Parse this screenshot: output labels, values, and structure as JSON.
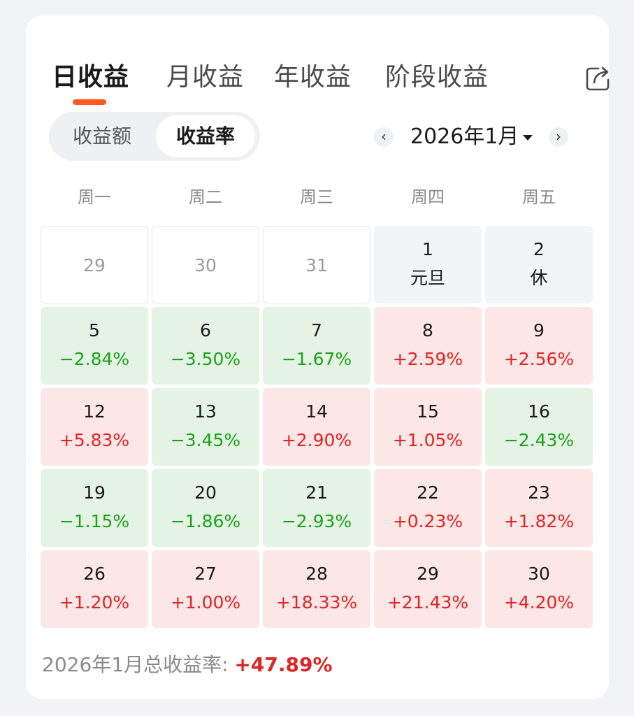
{
  "tabs": [
    {
      "label": "日收益",
      "active": true
    },
    {
      "label": "月收益",
      "active": false
    },
    {
      "label": "年收益",
      "active": false
    },
    {
      "label": "阶段收益",
      "active": false
    }
  ],
  "share_icon": "share-icon",
  "segment": {
    "options": [
      "收益额",
      "收益率"
    ],
    "selected": "收益率"
  },
  "month_nav": {
    "prev_icon": "‹",
    "next_icon": "›",
    "label": "2026年1月"
  },
  "weekdays": [
    "周一",
    "周二",
    "周三",
    "周四",
    "周五"
  ],
  "calendar": [
    [
      {
        "day": "29",
        "value": "",
        "state": "empty"
      },
      {
        "day": "30",
        "value": "",
        "state": "empty"
      },
      {
        "day": "31",
        "value": "",
        "state": "empty"
      },
      {
        "day": "1",
        "value": "元旦",
        "state": "holiday"
      },
      {
        "day": "2",
        "value": "休",
        "state": "holiday"
      }
    ],
    [
      {
        "day": "5",
        "value": "−2.84%",
        "state": "down"
      },
      {
        "day": "6",
        "value": "−3.50%",
        "state": "down"
      },
      {
        "day": "7",
        "value": "−1.67%",
        "state": "down"
      },
      {
        "day": "8",
        "value": "+2.59%",
        "state": "up"
      },
      {
        "day": "9",
        "value": "+2.56%",
        "state": "up"
      }
    ],
    [
      {
        "day": "12",
        "value": "+5.83%",
        "state": "up"
      },
      {
        "day": "13",
        "value": "−3.45%",
        "state": "down"
      },
      {
        "day": "14",
        "value": "+2.90%",
        "state": "up"
      },
      {
        "day": "15",
        "value": "+1.05%",
        "state": "up"
      },
      {
        "day": "16",
        "value": "−2.43%",
        "state": "down"
      }
    ],
    [
      {
        "day": "19",
        "value": "−1.15%",
        "state": "down"
      },
      {
        "day": "20",
        "value": "−1.86%",
        "state": "down"
      },
      {
        "day": "21",
        "value": "−2.93%",
        "state": "down"
      },
      {
        "day": "22",
        "value": "+0.23%",
        "state": "up"
      },
      {
        "day": "23",
        "value": "+1.82%",
        "state": "up"
      }
    ],
    [
      {
        "day": "26",
        "value": "+1.20%",
        "state": "up"
      },
      {
        "day": "27",
        "value": "+1.00%",
        "state": "up"
      },
      {
        "day": "28",
        "value": "+18.33%",
        "state": "up"
      },
      {
        "day": "29",
        "value": "+21.43%",
        "state": "up"
      },
      {
        "day": "30",
        "value": "+4.20%",
        "state": "up"
      }
    ]
  ],
  "summary": {
    "label": "2026年1月总收益率:",
    "value": "+47.89%"
  },
  "colors": {
    "accent": "#ff5a1f",
    "up": "#e02424",
    "down": "#1ba21b",
    "up_bg": "#fde6e6",
    "down_bg": "#e4f3e4"
  }
}
